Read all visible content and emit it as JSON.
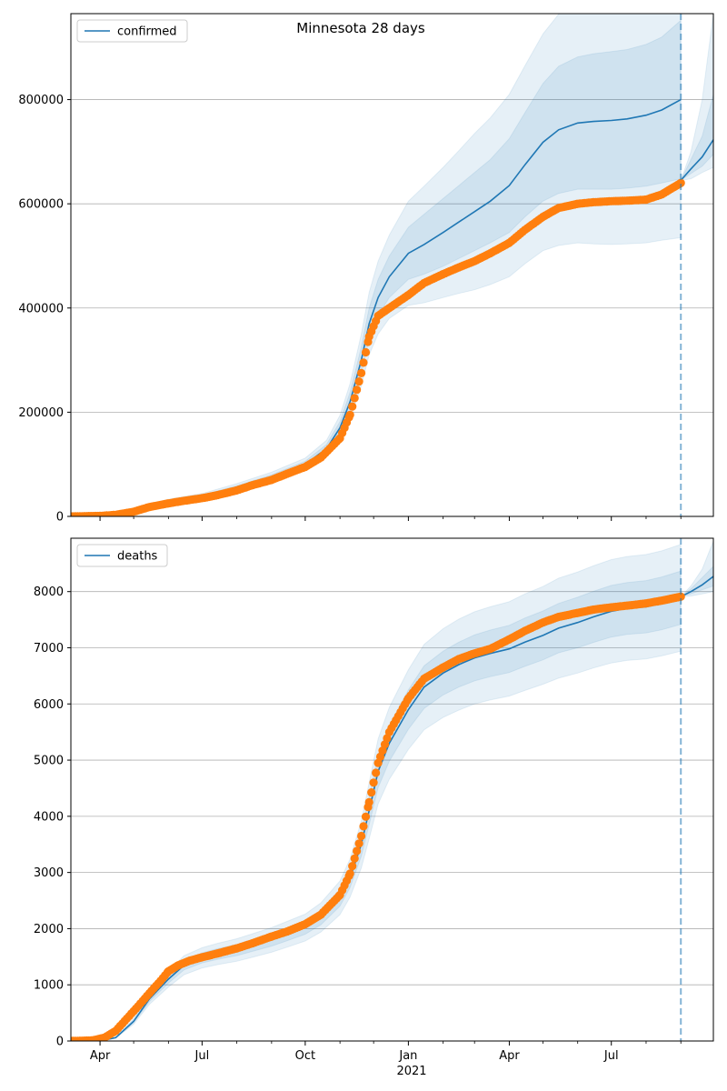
{
  "figure": {
    "title": "Minnesota 28 days",
    "year_label": "2021",
    "x_tick_labels": [
      "Apr",
      "Jul",
      "Oct",
      "Jan",
      "Apr",
      "Jul"
    ]
  },
  "colors": {
    "model_line": "#1f77b4",
    "observed": "#ff7f0e",
    "band": "#1f77b4",
    "grid": "#b0b0b0",
    "forecast_marker": "#1f77b4"
  },
  "chart_data": [
    {
      "type": "line",
      "legend": "confirmed",
      "legend_position": "top-left",
      "grid": "y",
      "x_axis": {
        "type": "date",
        "range": [
          "2020-03-06",
          "2021-09-30"
        ],
        "major_ticks": [
          "2020-04-01",
          "2020-07-01",
          "2020-10-01",
          "2021-01-01",
          "2021-04-01",
          "2021-07-01"
        ],
        "minor_ticks": [
          "2020-05-01",
          "2020-06-01",
          "2020-08-01",
          "2020-09-01",
          "2020-11-01",
          "2020-12-01",
          "2021-02-01",
          "2021-03-01",
          "2021-05-01",
          "2021-06-01",
          "2021-08-01",
          "2021-09-01"
        ]
      },
      "y_axis": {
        "range": [
          0,
          965000
        ],
        "ticks": [
          0,
          200000,
          400000,
          600000,
          800000
        ]
      },
      "forecast_start": "2021-09-01",
      "model": {
        "dates": [
          "2020-03-06",
          "2020-04-01",
          "2020-05-01",
          "2020-06-01",
          "2020-07-01",
          "2020-08-01",
          "2020-09-01",
          "2020-10-01",
          "2020-10-20",
          "2020-11-01",
          "2020-11-10",
          "2020-11-20",
          "2020-11-27",
          "2020-12-05",
          "2020-12-15",
          "2021-01-01",
          "2021-01-15",
          "2021-02-01",
          "2021-02-15",
          "2021-03-01",
          "2021-03-15",
          "2021-04-01",
          "2021-04-15",
          "2021-05-01",
          "2021-05-15",
          "2021-06-01",
          "2021-06-15",
          "2021-07-01",
          "2021-07-15",
          "2021-08-01",
          "2021-08-15",
          "2021-09-01"
        ],
        "values": [
          0,
          2000,
          12000,
          28000,
          38000,
          55000,
          75000,
          100000,
          130000,
          170000,
          220000,
          300000,
          370000,
          420000,
          460000,
          505000,
          522000,
          545000,
          565000,
          585000,
          605000,
          635000,
          675000,
          718000,
          742000,
          755000,
          758000,
          760000,
          763000,
          770000,
          780000,
          800000
        ],
        "band_inner": [
          [
            0,
            0
          ],
          [
            1500,
            2500
          ],
          [
            10500,
            13500
          ],
          [
            25500,
            30500
          ],
          [
            35000,
            41000
          ],
          [
            51000,
            59000
          ],
          [
            70000,
            80000
          ],
          [
            94000,
            106000
          ],
          [
            122000,
            138000
          ],
          [
            158000,
            182000
          ],
          [
            202000,
            238000
          ],
          [
            275000,
            325000
          ],
          [
            340000,
            400000
          ],
          [
            385000,
            455000
          ],
          [
            420000,
            500000
          ],
          [
            455000,
            555000
          ],
          [
            465000,
            580000
          ],
          [
            480000,
            610000
          ],
          [
            495000,
            635000
          ],
          [
            510000,
            660000
          ],
          [
            525000,
            685000
          ],
          [
            545000,
            725000
          ],
          [
            575000,
            775000
          ],
          [
            605000,
            831000
          ],
          [
            620000,
            864000
          ],
          [
            628000,
            882000
          ],
          [
            628000,
            888000
          ],
          [
            628000,
            892000
          ],
          [
            630000,
            896000
          ],
          [
            634000,
            906000
          ],
          [
            640000,
            920000
          ],
          [
            648000,
            952000
          ]
        ],
        "band_outer": [
          [
            0,
            0
          ],
          [
            1000,
            3000
          ],
          [
            9000,
            15000
          ],
          [
            23000,
            33000
          ],
          [
            32000,
            44000
          ],
          [
            47000,
            63000
          ],
          [
            65000,
            85000
          ],
          [
            88000,
            112000
          ],
          [
            114000,
            146000
          ],
          [
            146000,
            194000
          ],
          [
            185000,
            255000
          ],
          [
            250000,
            350000
          ],
          [
            310000,
            430000
          ],
          [
            350000,
            490000
          ],
          [
            380000,
            540000
          ],
          [
            405000,
            605000
          ],
          [
            410000,
            634000
          ],
          [
            420000,
            670000
          ],
          [
            428000,
            702000
          ],
          [
            435000,
            735000
          ],
          [
            445000,
            765000
          ],
          [
            460000,
            810000
          ],
          [
            485000,
            865000
          ],
          [
            510000,
            926000
          ],
          [
            520000,
            964000
          ],
          [
            525000,
            985000
          ],
          [
            523000,
            993000
          ],
          [
            522000,
            998000
          ],
          [
            523000,
            1003000
          ],
          [
            525000,
            1015000
          ],
          [
            530000,
            1030000
          ],
          [
            535000,
            1065000
          ]
        ]
      },
      "forecast": {
        "dates": [
          "2021-09-01",
          "2021-09-10",
          "2021-09-20",
          "2021-09-30"
        ],
        "values": [
          645000,
          667000,
          690000,
          723000
        ],
        "band_inner": [
          [
            645000,
            645000
          ],
          [
            658000,
            685000
          ],
          [
            672000,
            730000
          ],
          [
            695000,
            810000
          ]
        ],
        "band_outer": [
          [
            645000,
            645000
          ],
          [
            648000,
            700000
          ],
          [
            660000,
            800000
          ],
          [
            670000,
            965000
          ]
        ]
      },
      "observed": {
        "dates": [
          "2020-03-06",
          "2020-04-01",
          "2020-04-15",
          "2020-05-01",
          "2020-05-15",
          "2020-06-01",
          "2020-06-15",
          "2020-07-01",
          "2020-07-15",
          "2020-08-01",
          "2020-08-15",
          "2020-09-01",
          "2020-09-15",
          "2020-10-01",
          "2020-10-15",
          "2020-11-01",
          "2020-11-10",
          "2020-11-20",
          "2020-11-27",
          "2020-12-05",
          "2020-12-15",
          "2021-01-01",
          "2021-01-15",
          "2021-02-01",
          "2021-02-15",
          "2021-03-01",
          "2021-03-15",
          "2021-04-01",
          "2021-04-15",
          "2021-05-01",
          "2021-05-15",
          "2021-06-01",
          "2021-06-15",
          "2021-07-01",
          "2021-07-15",
          "2021-08-01",
          "2021-08-15",
          "2021-09-01"
        ],
        "values": [
          0,
          1000,
          3000,
          9000,
          18000,
          25000,
          30000,
          35000,
          41000,
          50000,
          60000,
          70000,
          82000,
          95000,
          113000,
          150000,
          195000,
          275000,
          345000,
          385000,
          400000,
          425000,
          448000,
          465000,
          478000,
          490000,
          505000,
          525000,
          550000,
          575000,
          592000,
          600000,
          603000,
          605000,
          606000,
          608000,
          618000,
          640000
        ]
      }
    },
    {
      "type": "line",
      "legend": "deaths",
      "legend_position": "top-left",
      "grid": "y",
      "x_axis": {
        "type": "date",
        "range": [
          "2020-03-06",
          "2021-09-30"
        ],
        "major_ticks": [
          "2020-04-01",
          "2020-07-01",
          "2020-10-01",
          "2021-01-01",
          "2021-04-01",
          "2021-07-01"
        ],
        "minor_ticks": [
          "2020-05-01",
          "2020-06-01",
          "2020-08-01",
          "2020-09-01",
          "2020-11-01",
          "2020-12-01",
          "2021-02-01",
          "2021-03-01",
          "2021-05-01",
          "2021-06-01",
          "2021-08-01",
          "2021-09-01"
        ]
      },
      "y_axis": {
        "range": [
          0,
          8950
        ],
        "ticks": [
          0,
          1000,
          2000,
          3000,
          4000,
          5000,
          6000,
          7000,
          8000
        ]
      },
      "forecast_start": "2021-09-01",
      "model": {
        "dates": [
          "2020-03-06",
          "2020-04-01",
          "2020-04-15",
          "2020-05-01",
          "2020-05-15",
          "2020-06-01",
          "2020-06-15",
          "2020-07-01",
          "2020-07-15",
          "2020-08-01",
          "2020-08-15",
          "2020-09-01",
          "2020-09-15",
          "2020-10-01",
          "2020-10-15",
          "2020-11-01",
          "2020-11-10",
          "2020-11-20",
          "2020-11-27",
          "2020-12-05",
          "2020-12-15",
          "2021-01-01",
          "2021-01-15",
          "2021-02-01",
          "2021-02-15",
          "2021-03-01",
          "2021-03-15",
          "2021-04-01",
          "2021-04-15",
          "2021-05-01",
          "2021-05-15",
          "2021-06-01",
          "2021-06-15",
          "2021-07-01",
          "2021-07-15",
          "2021-08-01",
          "2021-08-15",
          "2021-09-01"
        ],
        "values": [
          0,
          0,
          60,
          350,
          750,
          1100,
          1350,
          1480,
          1550,
          1620,
          1700,
          1800,
          1900,
          2020,
          2200,
          2550,
          2900,
          3500,
          4100,
          4800,
          5300,
          5900,
          6300,
          6550,
          6700,
          6820,
          6900,
          6980,
          7100,
          7220,
          7350,
          7450,
          7550,
          7650,
          7700,
          7730,
          7790,
          7890
        ],
        "band_inner": [
          [
            0,
            0
          ],
          [
            0,
            0
          ],
          [
            55,
            65
          ],
          [
            325,
            375
          ],
          [
            700,
            800
          ],
          [
            1030,
            1170
          ],
          [
            1265,
            1435
          ],
          [
            1390,
            1570
          ],
          [
            1455,
            1645
          ],
          [
            1520,
            1720
          ],
          [
            1595,
            1805
          ],
          [
            1690,
            1910
          ],
          [
            1785,
            2015
          ],
          [
            1900,
            2140
          ],
          [
            2070,
            2330
          ],
          [
            2400,
            2700
          ],
          [
            2730,
            3070
          ],
          [
            3290,
            3710
          ],
          [
            3850,
            4350
          ],
          [
            4510,
            5090
          ],
          [
            4980,
            5620
          ],
          [
            5550,
            6250
          ],
          [
            5920,
            6680
          ],
          [
            6160,
            6940
          ],
          [
            6300,
            7100
          ],
          [
            6410,
            7230
          ],
          [
            6485,
            7315
          ],
          [
            6560,
            7400
          ],
          [
            6670,
            7530
          ],
          [
            6785,
            7655
          ],
          [
            6910,
            7790
          ],
          [
            7000,
            7900
          ],
          [
            7095,
            8005
          ],
          [
            7190,
            8110
          ],
          [
            7240,
            8160
          ],
          [
            7265,
            8195
          ],
          [
            7320,
            8260
          ],
          [
            7415,
            8365
          ]
        ],
        "band_outer": [
          [
            0,
            0
          ],
          [
            0,
            0
          ],
          [
            50,
            70
          ],
          [
            300,
            400
          ],
          [
            650,
            850
          ],
          [
            960,
            1240
          ],
          [
            1180,
            1520
          ],
          [
            1300,
            1660
          ],
          [
            1360,
            1740
          ],
          [
            1420,
            1820
          ],
          [
            1490,
            1910
          ],
          [
            1580,
            2020
          ],
          [
            1670,
            2130
          ],
          [
            1780,
            2260
          ],
          [
            1940,
            2460
          ],
          [
            2250,
            2850
          ],
          [
            2560,
            3240
          ],
          [
            3080,
            3920
          ],
          [
            3600,
            4600
          ],
          [
            4220,
            5380
          ],
          [
            4660,
            5940
          ],
          [
            5190,
            6610
          ],
          [
            5540,
            7060
          ],
          [
            5760,
            7340
          ],
          [
            5890,
            7510
          ],
          [
            6000,
            7640
          ],
          [
            6070,
            7730
          ],
          [
            6140,
            7820
          ],
          [
            6240,
            7960
          ],
          [
            6350,
            8090
          ],
          [
            6460,
            8240
          ],
          [
            6550,
            8350
          ],
          [
            6640,
            8460
          ],
          [
            6730,
            8570
          ],
          [
            6775,
            8625
          ],
          [
            6800,
            8660
          ],
          [
            6855,
            8725
          ],
          [
            6940,
            8840
          ]
        ]
      },
      "forecast": {
        "dates": [
          "2021-09-01",
          "2021-09-10",
          "2021-09-20",
          "2021-09-30"
        ],
        "values": [
          7910,
          8000,
          8120,
          8270
        ],
        "band_inner": [
          [
            7910,
            7910
          ],
          [
            7960,
            8050
          ],
          [
            8030,
            8250
          ],
          [
            8100,
            8450
          ]
        ],
        "band_outer": [
          [
            7910,
            7910
          ],
          [
            7920,
            8100
          ],
          [
            7960,
            8400
          ],
          [
            8000,
            8900
          ]
        ]
      },
      "observed": {
        "dates": [
          "2020-03-06",
          "2020-03-25",
          "2020-04-05",
          "2020-04-15",
          "2020-04-25",
          "2020-05-05",
          "2020-05-15",
          "2020-05-25",
          "2020-06-01",
          "2020-06-10",
          "2020-06-20",
          "2020-07-01",
          "2020-07-15",
          "2020-08-01",
          "2020-08-15",
          "2020-09-01",
          "2020-09-15",
          "2020-10-01",
          "2020-10-15",
          "2020-11-01",
          "2020-11-10",
          "2020-11-20",
          "2020-11-27",
          "2020-12-05",
          "2020-12-15",
          "2021-01-01",
          "2021-01-15",
          "2021-02-01",
          "2021-02-15",
          "2021-03-01",
          "2021-03-15",
          "2021-04-01",
          "2021-04-15",
          "2021-05-01",
          "2021-05-15",
          "2021-06-01",
          "2021-06-15",
          "2021-07-01",
          "2021-07-15",
          "2021-08-01",
          "2021-08-15",
          "2021-09-01"
        ],
        "values": [
          0,
          10,
          60,
          180,
          400,
          620,
          850,
          1070,
          1240,
          1350,
          1430,
          1490,
          1560,
          1650,
          1740,
          1860,
          1950,
          2080,
          2250,
          2600,
          2980,
          3650,
          4250,
          4950,
          5500,
          6100,
          6450,
          6650,
          6800,
          6900,
          6980,
          7150,
          7300,
          7450,
          7550,
          7620,
          7680,
          7720,
          7750,
          7790,
          7840,
          7910
        ]
      }
    }
  ]
}
